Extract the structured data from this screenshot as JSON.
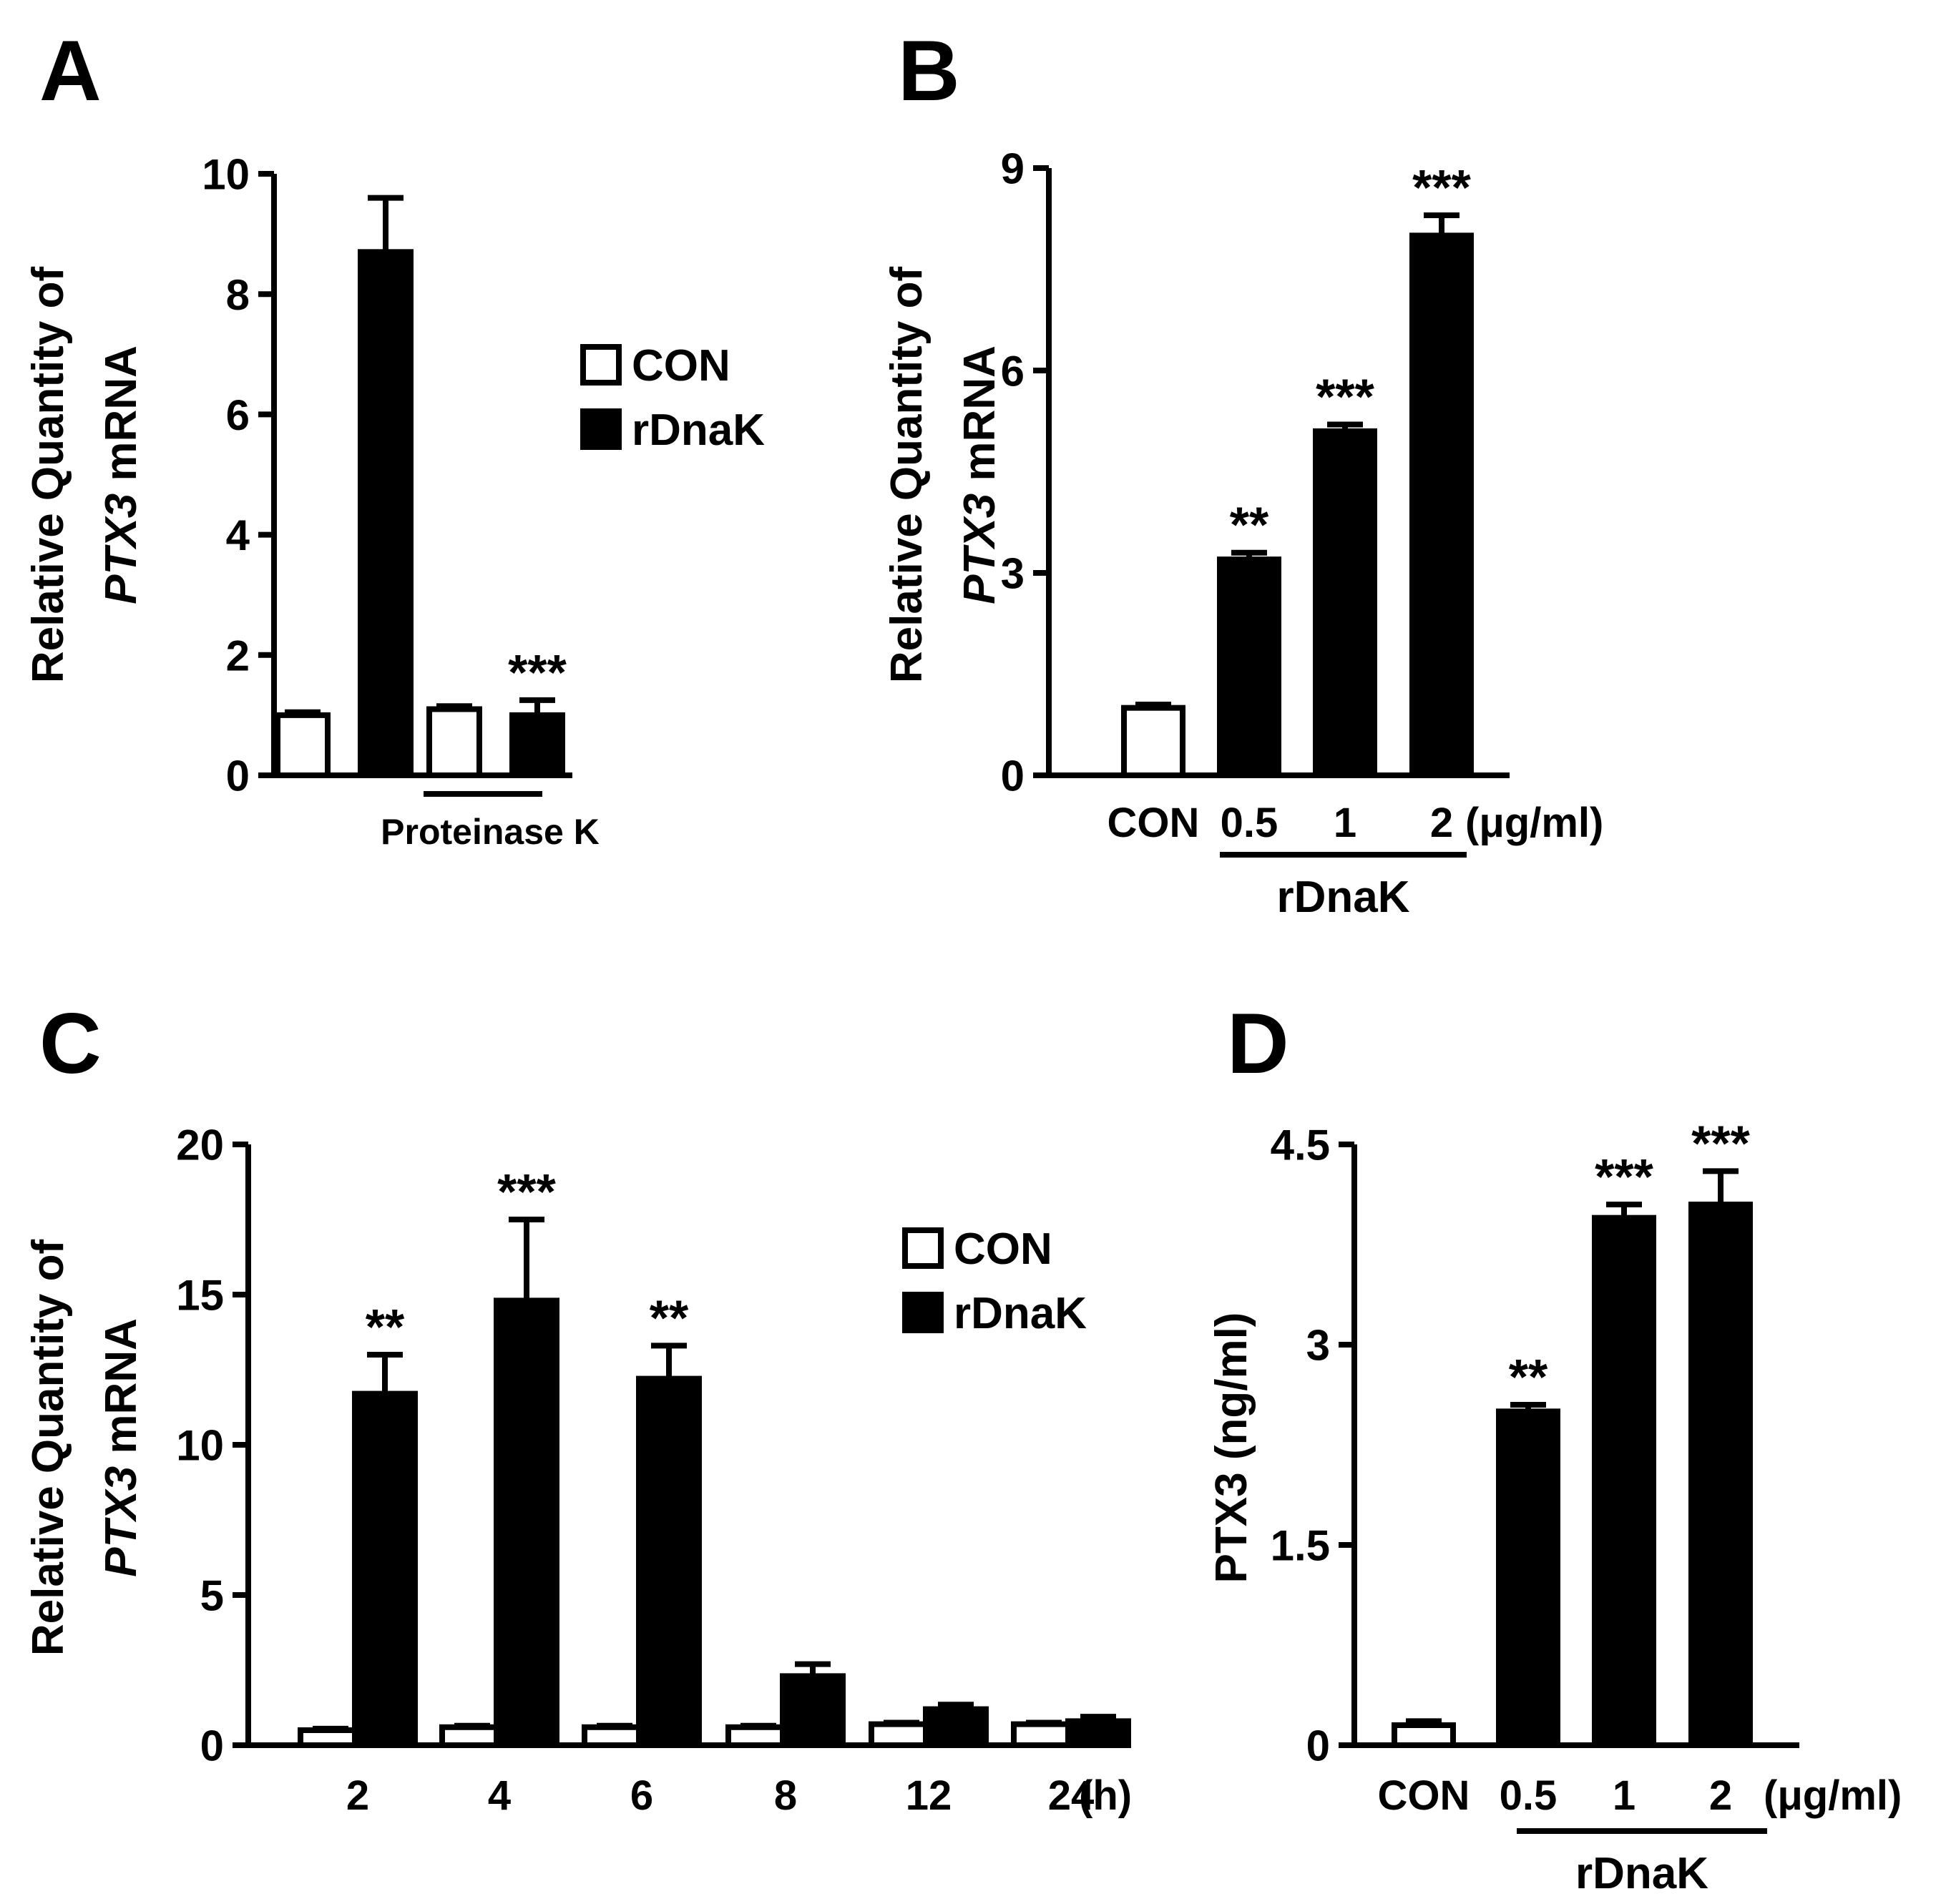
{
  "chart_data": [
    {
      "panel": "A",
      "type": "bar",
      "categories": [
        "",
        "Proteinase K"
      ],
      "group_label": "Proteinase K",
      "series": [
        {
          "name": "CON",
          "values": [
            1.0,
            1.1
          ],
          "errors": [
            0.05,
            0.05
          ],
          "fill": "#ffffff"
        },
        {
          "name": "rDnaK",
          "values": [
            8.7,
            1.0
          ],
          "errors": [
            0.9,
            0.25
          ],
          "fill": "#000000"
        }
      ],
      "significance": [
        "",
        "***"
      ],
      "ylabel_line1": "Relative Quantity of",
      "ylabel_gene": "PTX3",
      "ylabel_rest": " mRNA",
      "ylim": [
        0,
        10
      ],
      "yticks": [
        "0",
        "2",
        "4",
        "6",
        "8",
        "10"
      ],
      "legend": [
        "CON",
        "rDnaK"
      ],
      "legend_placement": "right"
    },
    {
      "panel": "B",
      "type": "bar",
      "categories": [
        "CON",
        "0.5",
        "1",
        "2"
      ],
      "unit": "(μg/ml)",
      "group_label": "rDnaK",
      "values": [
        1.0,
        3.2,
        5.1,
        8.0
      ],
      "errors": [
        0.05,
        0.1,
        0.1,
        0.3
      ],
      "fills": [
        "#ffffff",
        "#000000",
        "#000000",
        "#000000"
      ],
      "significance": [
        "",
        "**",
        "***",
        "***"
      ],
      "ylabel_line1": "Relative Quantity of",
      "ylabel_gene": "PTX3",
      "ylabel_rest": " mRNA",
      "ylim": [
        0,
        9
      ],
      "yticks": [
        "0",
        "3",
        "6",
        "9"
      ]
    },
    {
      "panel": "C",
      "type": "bar",
      "categories": [
        "2",
        "4",
        "6",
        "8",
        "12",
        "24"
      ],
      "unit": "(h)",
      "series": [
        {
          "name": "CON",
          "values": [
            0.5,
            0.6,
            0.6,
            0.6,
            0.7,
            0.7
          ],
          "errors": [
            0.05,
            0.05,
            0.05,
            0.05,
            0.05,
            0.05
          ],
          "fill": "#ffffff"
        },
        {
          "name": "rDnaK",
          "values": [
            11.7,
            14.8,
            12.2,
            2.3,
            1.2,
            0.8
          ],
          "errors": [
            1.3,
            2.7,
            1.1,
            0.4,
            0.15,
            0.15
          ],
          "fill": "#000000"
        }
      ],
      "significance": [
        "**",
        "***",
        "**",
        "",
        "",
        ""
      ],
      "ylabel_line1": "Relative Quantity of",
      "ylabel_gene": "PTX3",
      "ylabel_rest": " mRNA",
      "ylim": [
        0,
        20
      ],
      "yticks": [
        "0",
        "5",
        "10",
        "15",
        "20"
      ],
      "legend": [
        "CON",
        "rDnaK"
      ],
      "legend_placement": "top-right"
    },
    {
      "panel": "D",
      "type": "bar",
      "categories": [
        "CON",
        "0.5",
        "1",
        "2"
      ],
      "unit": "(μg/ml)",
      "group_label": "rDnaK",
      "values": [
        0.15,
        2.5,
        3.95,
        4.05
      ],
      "errors": [
        0.03,
        0.05,
        0.1,
        0.25
      ],
      "fills": [
        "#ffffff",
        "#000000",
        "#000000",
        "#000000"
      ],
      "significance": [
        "",
        "**",
        "***",
        "***"
      ],
      "ylabel_line1": "PTX3 (ng/ml)",
      "ylim": [
        0,
        4.5
      ],
      "yticks": [
        "0",
        "1.5",
        "3",
        "4.5"
      ]
    }
  ]
}
